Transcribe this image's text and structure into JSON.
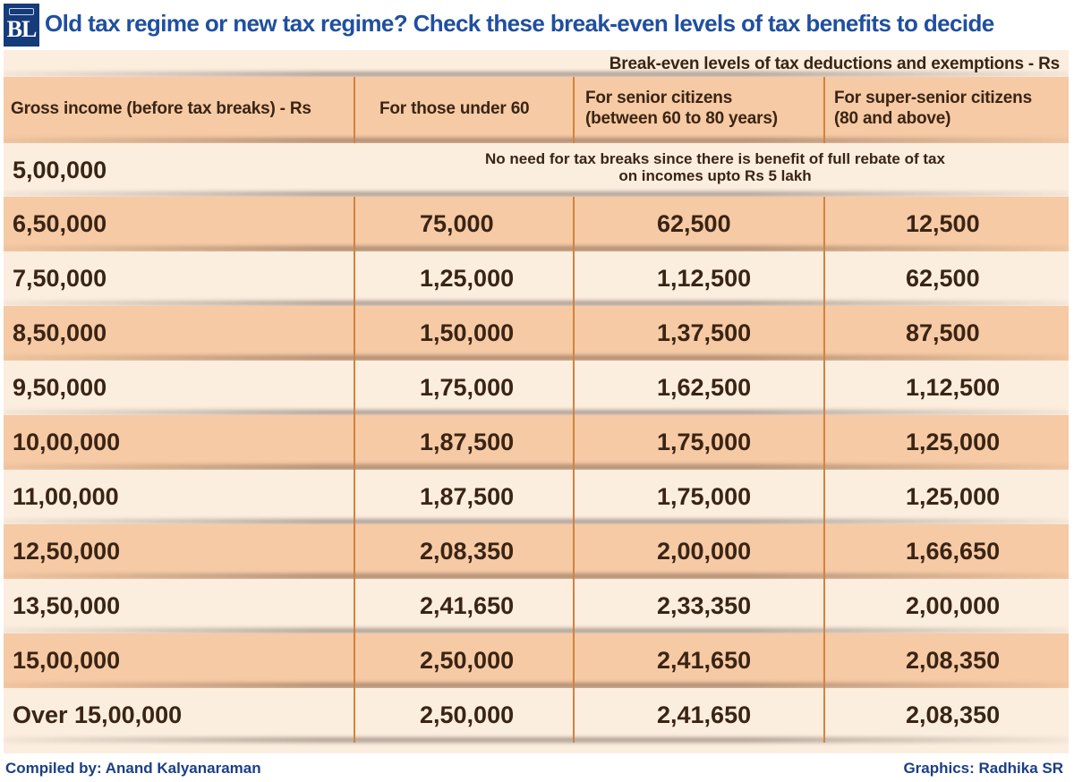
{
  "header": {
    "logo_text": "BL",
    "title": "Old tax regime or new tax regime? Check these break-even levels of tax benefits to decide"
  },
  "table": {
    "banner": "Break-even levels of tax deductions and exemptions - Rs",
    "columns": [
      "Gross income (before tax breaks) - Rs",
      "For those under 60",
      "For senior citizens (between 60 to 80 years)",
      "For super-senior citizens (80 and above)"
    ],
    "column_lines": [
      [
        "Gross income (before tax breaks) - Rs"
      ],
      [
        "For those under 60"
      ],
      [
        "For senior citizens",
        "(between 60 to 80 years)"
      ],
      [
        "For super-senior citizens",
        "(80 and above)"
      ]
    ],
    "note": {
      "gross_income": "5,00,000",
      "line1": "No need for tax breaks since there is benefit of full rebate of tax",
      "line2": "on incomes upto Rs 5 lakh"
    },
    "rows": [
      [
        "6,50,000",
        "75,000",
        "62,500",
        "12,500"
      ],
      [
        "7,50,000",
        "1,25,000",
        "1,12,500",
        "62,500"
      ],
      [
        "8,50,000",
        "1,50,000",
        "1,37,500",
        "87,500"
      ],
      [
        "9,50,000",
        "1,75,000",
        "1,62,500",
        "1,12,500"
      ],
      [
        "10,00,000",
        "1,87,500",
        "1,75,000",
        "1,25,000"
      ],
      [
        "11,00,000",
        "1,87,500",
        "1,75,000",
        "1,25,000"
      ],
      [
        "12,50,000",
        "2,08,350",
        "2,00,000",
        "1,66,650"
      ],
      [
        "13,50,000",
        "2,41,650",
        "2,33,350",
        "2,00,000"
      ],
      [
        "15,00,000",
        "2,50,000",
        "2,41,650",
        "2,08,350"
      ],
      [
        "Over 15,00,000",
        "2,50,000",
        "2,41,650",
        "2,08,350"
      ]
    ]
  },
  "footer": {
    "compiled_by": "Compiled by: Anand Kalyanaraman",
    "graphics": "Graphics: Radhika SR"
  },
  "colors": {
    "title": "#1f4fa0",
    "text": "#3a2414",
    "row_light": "#fbeedf",
    "row_dark": "#f6caa4",
    "divider": "#d2823f",
    "logo_bg": "#153b7a",
    "credit": "#1b3f86"
  },
  "chart_data": {
    "type": "table",
    "title": "Old tax regime or new tax regime? Check these break-even levels of tax benefits to decide",
    "subtitle": "Break-even levels of tax deductions and exemptions - Rs",
    "columns": [
      "Gross income (before tax breaks) - Rs",
      "For those under 60",
      "For senior citizens (between 60 to 80 years)",
      "For super-senior citizens (80 and above)"
    ],
    "rows": [
      [
        "5,00,000",
        "No need for tax breaks since there is benefit of full rebate of tax on incomes upto Rs 5 lakh"
      ],
      [
        "6,50,000",
        "75,000",
        "62,500",
        "12,500"
      ],
      [
        "7,50,000",
        "1,25,000",
        "1,12,500",
        "62,500"
      ],
      [
        "8,50,000",
        "1,50,000",
        "1,37,500",
        "87,500"
      ],
      [
        "9,50,000",
        "1,75,000",
        "1,62,500",
        "1,12,500"
      ],
      [
        "10,00,000",
        "1,87,500",
        "1,75,000",
        "1,25,000"
      ],
      [
        "11,00,000",
        "1,87,500",
        "1,75,000",
        "1,25,000"
      ],
      [
        "12,50,000",
        "2,08,350",
        "2,00,000",
        "1,66,650"
      ],
      [
        "13,50,000",
        "2,41,650",
        "2,33,350",
        "2,00,000"
      ],
      [
        "15,00,000",
        "2,50,000",
        "2,41,650",
        "2,08,350"
      ],
      [
        "Over 15,00,000",
        "2,50,000",
        "2,41,650",
        "2,08,350"
      ]
    ]
  }
}
